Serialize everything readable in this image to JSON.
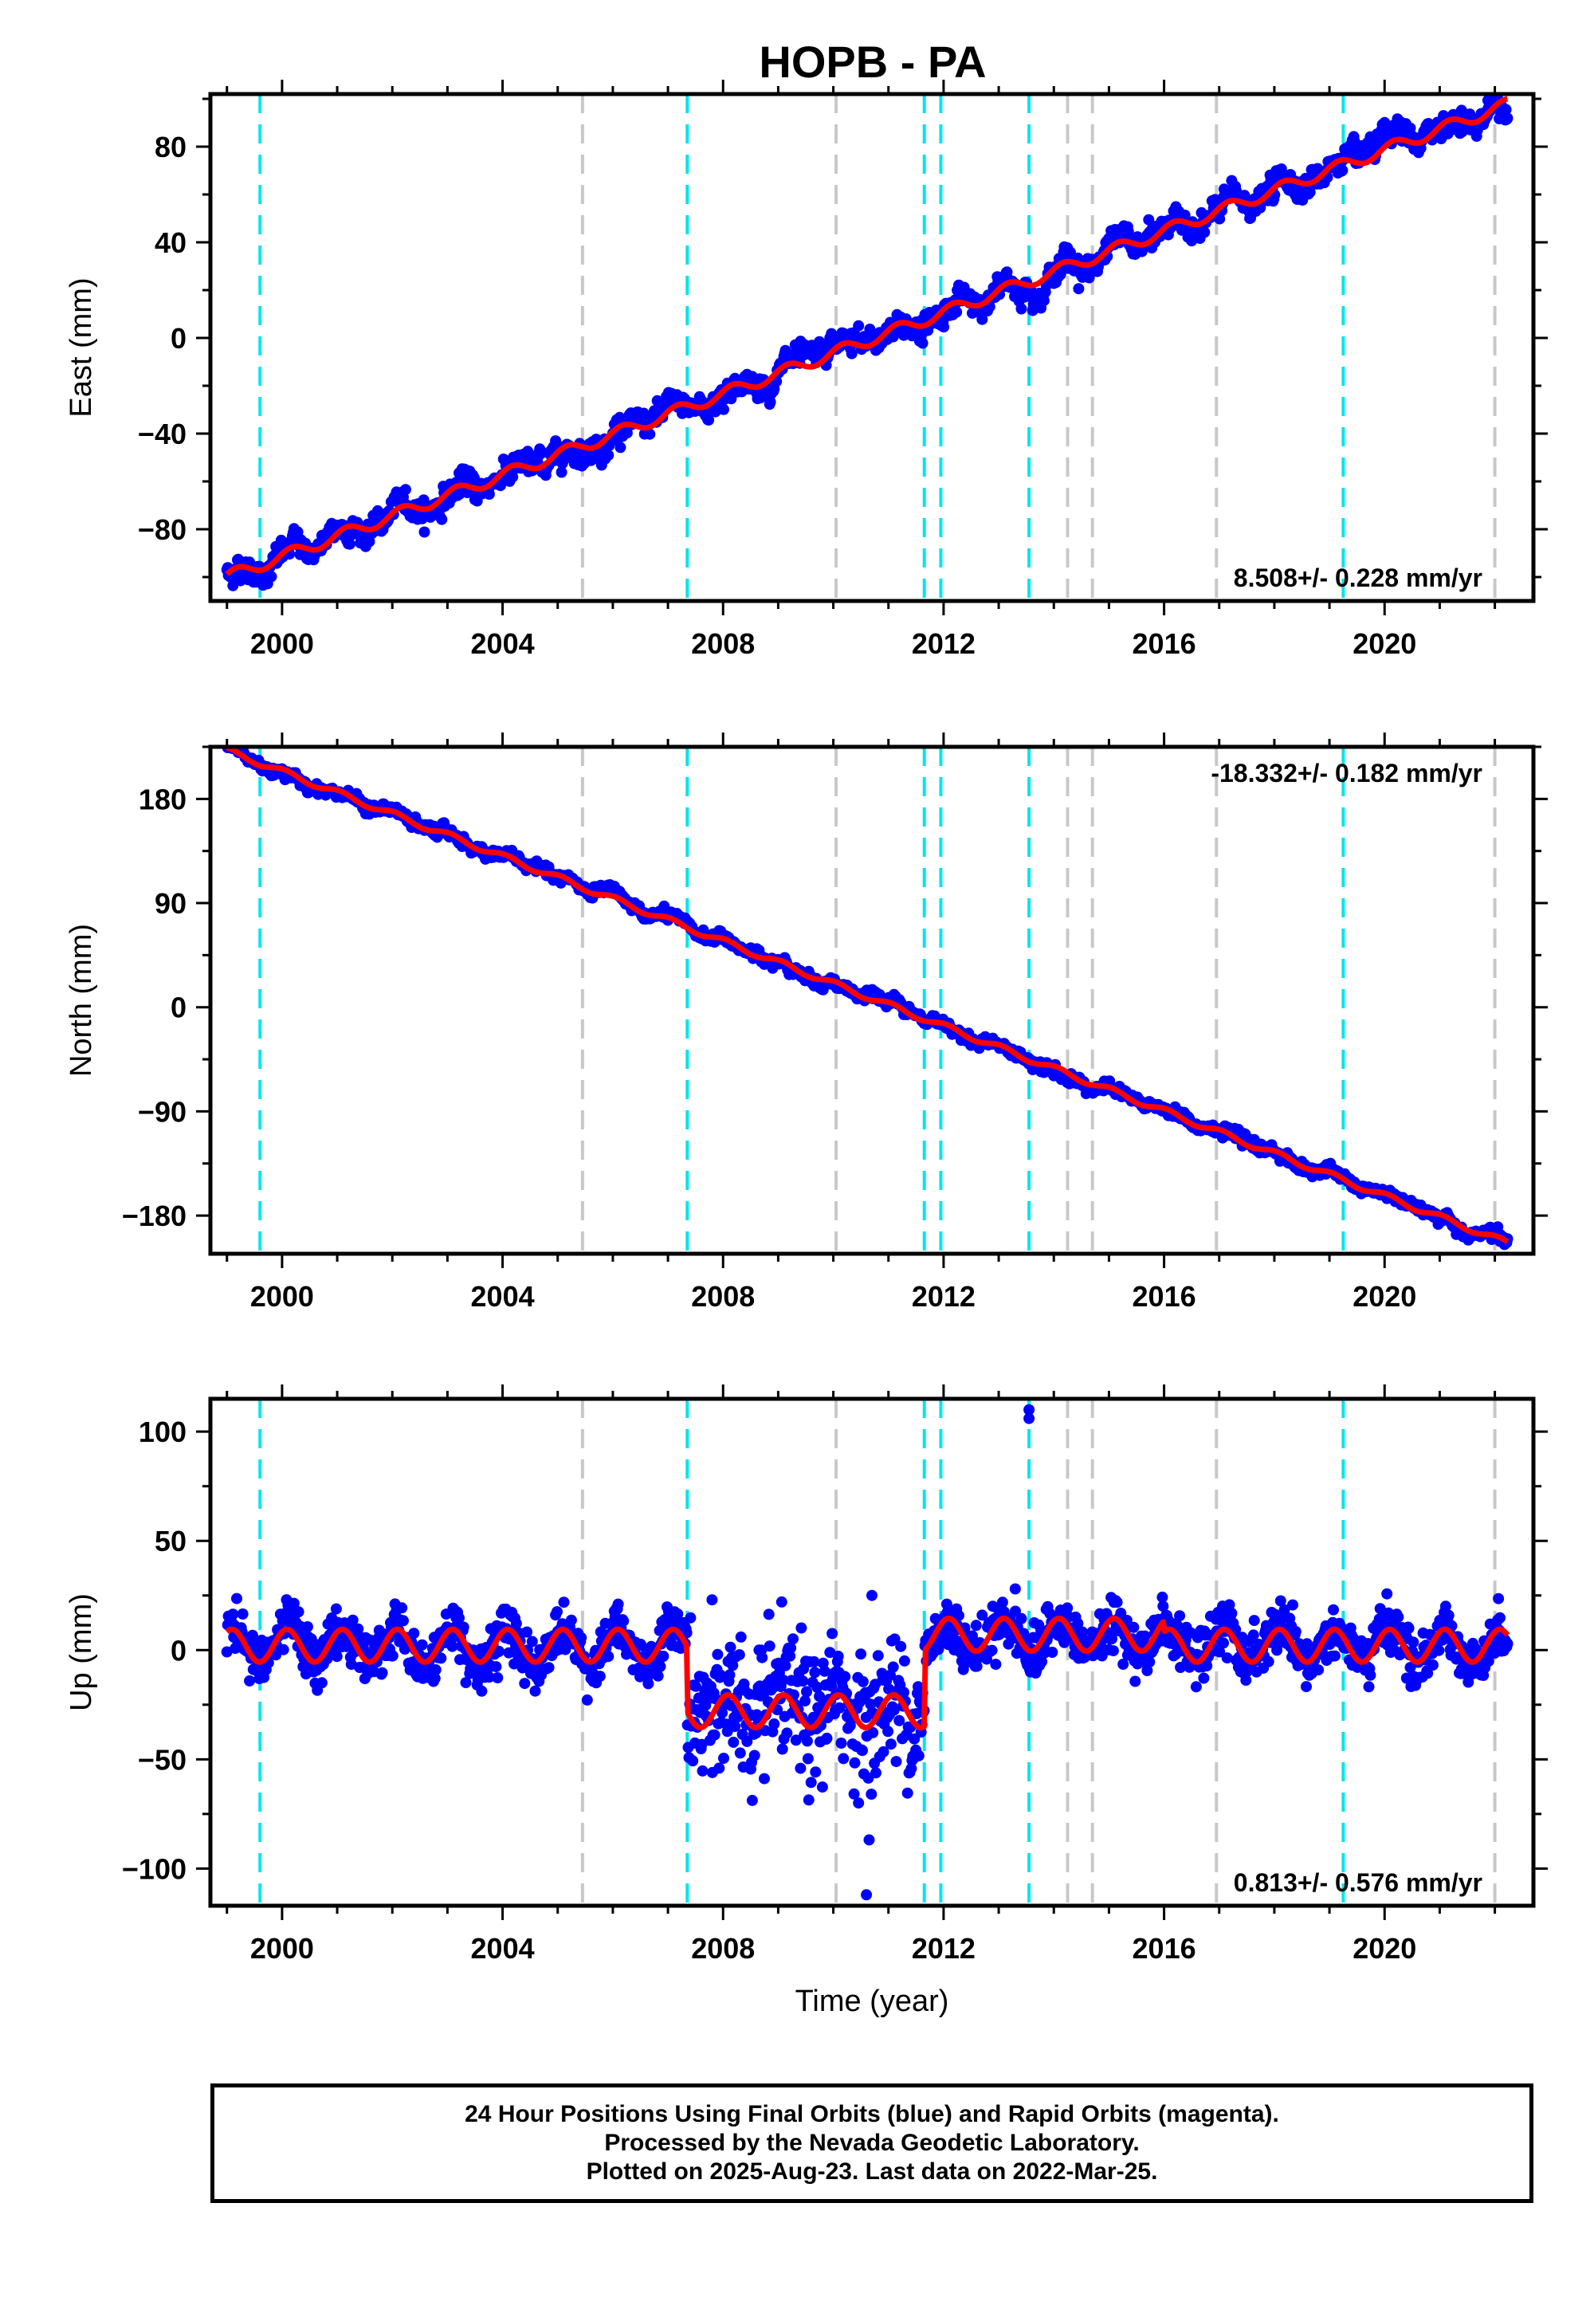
{
  "title": "HOPB - PA",
  "colors": {
    "final_orbits": "#0000ff",
    "model_fit": "#ff0000",
    "equipment_change": "#00e5ee",
    "other_event": "#c8c8c8",
    "frame": "#000000"
  },
  "events": {
    "equipment_change_years": [
      1999.6,
      2007.35,
      2011.65,
      2011.95,
      2013.55,
      2019.25
    ],
    "other_event_years": [
      2005.45,
      2010.05,
      2014.25,
      2014.7,
      2016.95,
      2022.0
    ]
  },
  "footer": {
    "line1": "24 Hour Positions Using Final Orbits (blue) and Rapid Orbits (magenta).",
    "line2": "Processed by the Nevada Geodetic Laboratory.",
    "line3": "Plotted on 2025-Aug-23. Last data on 2022-Mar-25."
  },
  "chart_data": [
    {
      "type": "scatter",
      "component": "East",
      "ylabel": "East (mm)",
      "xlabel": "",
      "xlim": [
        1998.7,
        2022.7
      ],
      "ylim": [
        -110,
        102
      ],
      "x_ticks": [
        2000,
        2004,
        2008,
        2012,
        2016,
        2020
      ],
      "x_tick_labels": [
        "2000",
        "2004",
        "2008",
        "2012",
        "2016",
        "2020"
      ],
      "y_ticks": [
        -80,
        -40,
        0,
        40,
        80
      ],
      "y_tick_labels": [
        "−80",
        "−40",
        "0",
        "40",
        "80"
      ],
      "rate_label": "8.508+/- 0.228 mm/yr",
      "rate_position": "bottom-right",
      "data_span": [
        1999.0,
        2022.23
      ],
      "trend": {
        "ref_year": 1999.0,
        "intercept": -100,
        "slope": 8.508
      },
      "seasonal": {
        "amplitude": 2.5,
        "phase": 0.5
      },
      "scatter_sd": 2.2,
      "offsets": []
    },
    {
      "type": "scatter",
      "component": "North",
      "ylabel": "North (mm)",
      "xlabel": "",
      "xlim": [
        1998.7,
        2022.7
      ],
      "ylim": [
        -213,
        225
      ],
      "x_ticks": [
        2000,
        2004,
        2008,
        2012,
        2016,
        2020
      ],
      "x_tick_labels": [
        "2000",
        "2004",
        "2008",
        "2012",
        "2016",
        "2020"
      ],
      "y_ticks": [
        -180,
        -90,
        0,
        90,
        180
      ],
      "y_tick_labels": [
        "−180",
        "−90",
        "0",
        "90",
        "180"
      ],
      "rate_label": "-18.332+/- 0.182 mm/yr",
      "rate_position": "top-right",
      "data_span": [
        1999.0,
        2022.23
      ],
      "trend": {
        "ref_year": 1999.0,
        "intercept": 222,
        "slope": -18.332
      },
      "seasonal": {
        "amplitude": 2.5,
        "phase": 1.2
      },
      "scatter_sd": 2.0,
      "offsets": []
    },
    {
      "type": "scatter",
      "component": "Up",
      "ylabel": "Up (mm)",
      "xlabel": "Time (year)",
      "xlim": [
        1998.7,
        2022.7
      ],
      "ylim": [
        -117,
        115
      ],
      "x_ticks": [
        2000,
        2004,
        2008,
        2012,
        2016,
        2020
      ],
      "x_tick_labels": [
        "2000",
        "2004",
        "2008",
        "2012",
        "2016",
        "2020"
      ],
      "y_ticks": [
        -100,
        -50,
        0,
        50,
        100
      ],
      "y_tick_labels": [
        "−100",
        "−50",
        "0",
        "50",
        "100"
      ],
      "rate_label": "0.813+/- 0.576 mm/yr",
      "rate_position": "bottom-right",
      "data_span": [
        1999.0,
        2022.23
      ],
      "trend": {
        "ref_year": 1999.0,
        "intercept": 2,
        "slope": 0.0
      },
      "seasonal": {
        "amplitude": 7.5,
        "phase": 1.0
      },
      "scatter_sd": 5.5,
      "offsets": [
        {
          "start": 2007.35,
          "end": 2011.65,
          "shift": -30,
          "extra_sd": 9
        },
        {
          "start": 2011.65,
          "end": 2016.0,
          "shift": 5,
          "extra_sd": 0
        }
      ],
      "outliers": [
        {
          "x": 2013.55,
          "y": 110
        },
        {
          "x": 2013.55,
          "y": 106
        },
        {
          "x": 2010.6,
          "y": -112
        },
        {
          "x": 2007.8,
          "y": 23
        },
        {
          "x": 2010.7,
          "y": 25
        },
        {
          "x": 2013.3,
          "y": 28
        }
      ]
    }
  ]
}
